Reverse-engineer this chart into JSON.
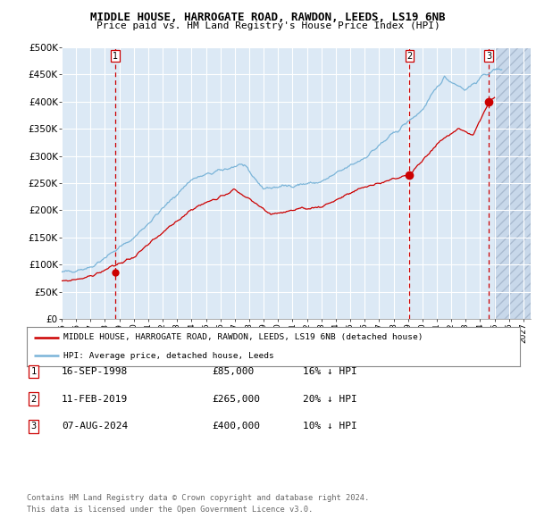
{
  "title": "MIDDLE HOUSE, HARROGATE ROAD, RAWDON, LEEDS, LS19 6NB",
  "subtitle": "Price paid vs. HM Land Registry's House Price Index (HPI)",
  "ylim": [
    0,
    500000
  ],
  "yticks": [
    0,
    50000,
    100000,
    150000,
    200000,
    250000,
    300000,
    350000,
    400000,
    450000,
    500000
  ],
  "ytick_labels": [
    "£0",
    "£50K",
    "£100K",
    "£150K",
    "£200K",
    "£250K",
    "£300K",
    "£350K",
    "£400K",
    "£450K",
    "£500K"
  ],
  "hpi_color": "#7ab4d8",
  "price_color": "#cc0000",
  "vline_color": "#cc0000",
  "background_color": "#dce9f5",
  "hatch_color": "#c8d8ea",
  "transactions": [
    {
      "label": "1",
      "date_num": 1998.71,
      "price": 85000,
      "hpi_pct": "16% ↓ HPI",
      "date_str": "16-SEP-1998"
    },
    {
      "label": "2",
      "date_num": 2019.11,
      "price": 265000,
      "hpi_pct": "20% ↓ HPI",
      "date_str": "11-FEB-2019"
    },
    {
      "label": "3",
      "date_num": 2024.6,
      "price": 400000,
      "hpi_pct": "10% ↓ HPI",
      "date_str": "07-AUG-2024"
    }
  ],
  "legend_line1": "MIDDLE HOUSE, HARROGATE ROAD, RAWDON, LEEDS, LS19 6NB (detached house)",
  "legend_line2": "HPI: Average price, detached house, Leeds",
  "footer1": "Contains HM Land Registry data © Crown copyright and database right 2024.",
  "footer2": "This data is licensed under the Open Government Licence v3.0.",
  "xmin": 1995.0,
  "xmax": 2027.5,
  "future_start": 2025.0
}
